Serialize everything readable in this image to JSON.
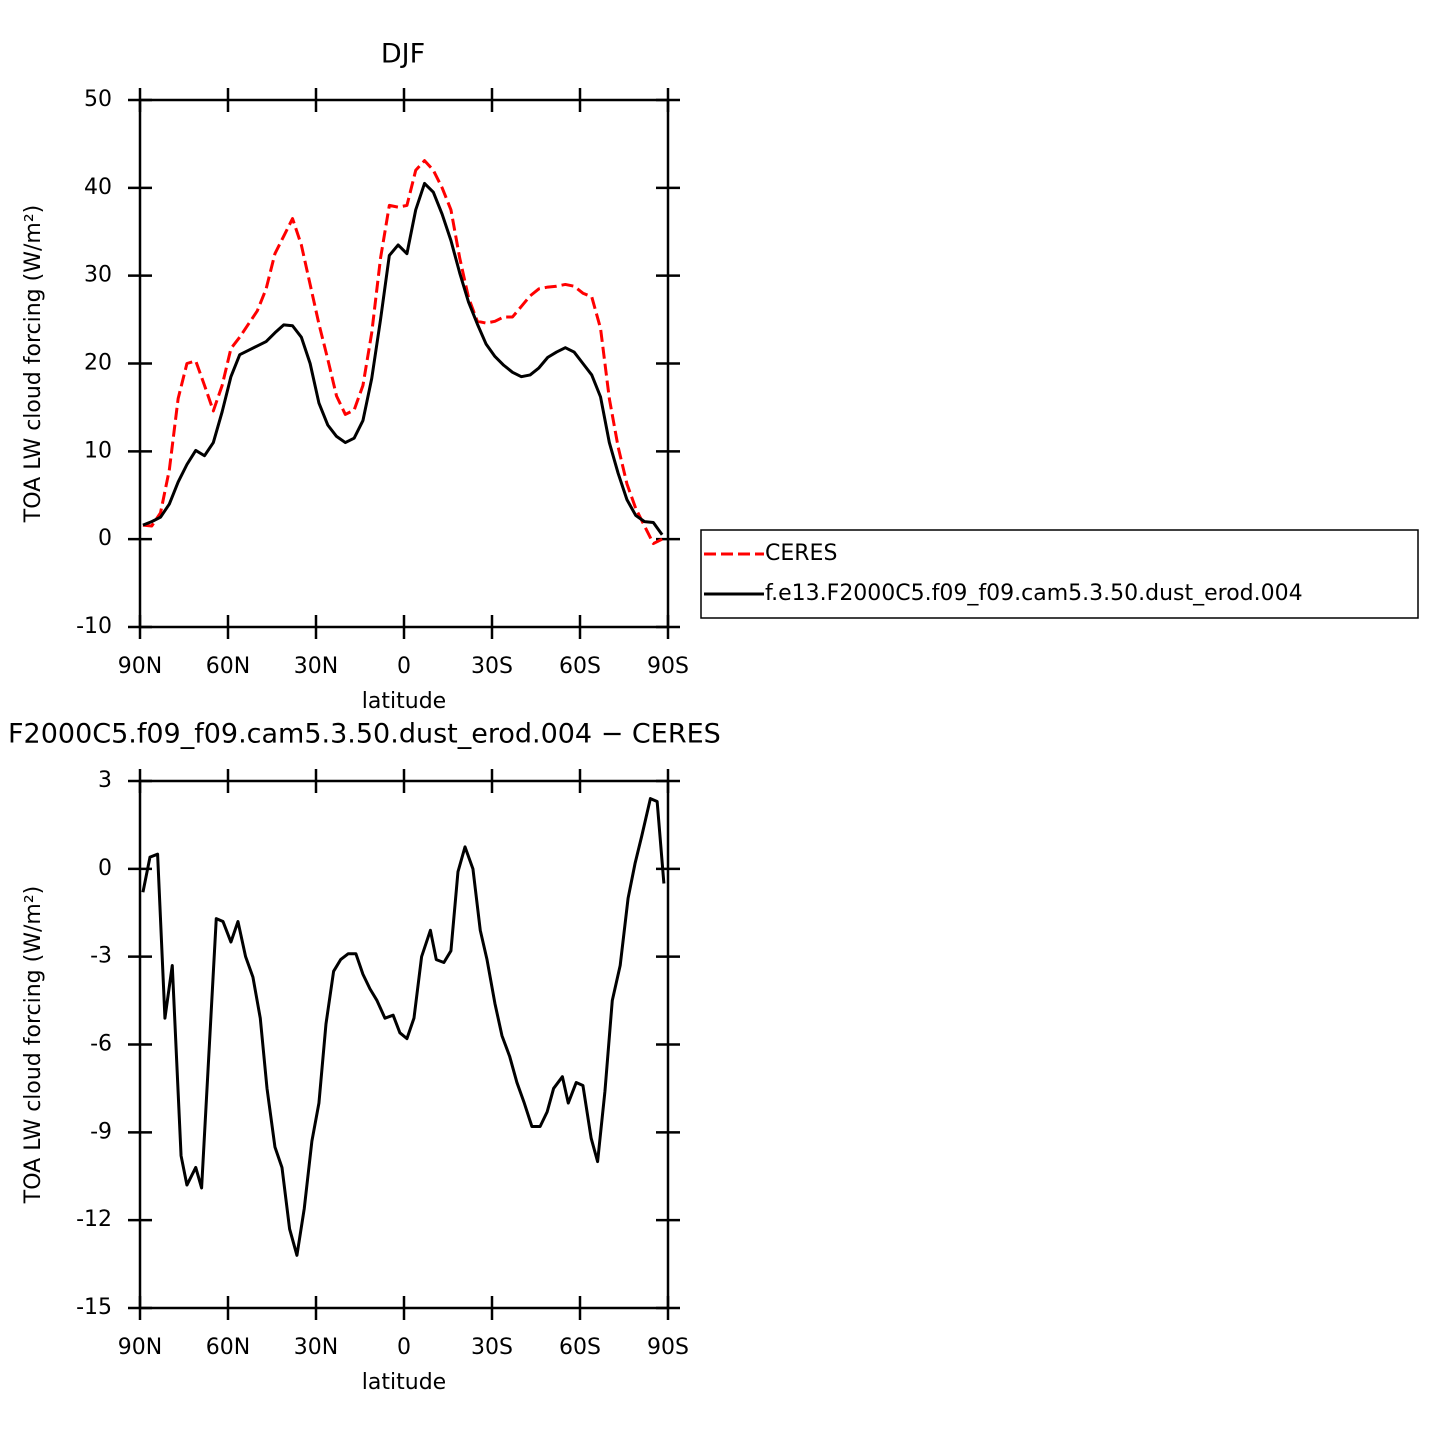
{
  "chart_data": [
    {
      "type": "line",
      "title": "DJF",
      "xlabel": "latitude",
      "ylabel": "TOA LW cloud forcing (W/m²)",
      "xlim": [
        90,
        -90
      ],
      "xticks": [
        {
          "value": 90,
          "label": "90N"
        },
        {
          "value": 60,
          "label": "60N"
        },
        {
          "value": 30,
          "label": "30N"
        },
        0,
        {
          "value": -30,
          "label": "30S"
        },
        {
          "value": -60,
          "label": "60S"
        },
        {
          "value": -90,
          "label": "90S"
        }
      ],
      "ylim": [
        -10,
        50
      ],
      "yticks": [
        -10,
        0,
        10,
        20,
        30,
        40,
        50
      ],
      "x": [
        89,
        86,
        83,
        80,
        77,
        74,
        71,
        68,
        65,
        62,
        59,
        56,
        53,
        50,
        47,
        44,
        41,
        38,
        35,
        32,
        29,
        26,
        23,
        20,
        17,
        14,
        11,
        8,
        5,
        2,
        -1,
        -4,
        -7,
        -10,
        -13,
        -16,
        -19,
        -22,
        -25,
        -28,
        -31,
        -34,
        -37,
        -40,
        -43,
        -46,
        -49,
        -52,
        -55,
        -58,
        -61,
        -64,
        -67,
        -70,
        -73,
        -76,
        -79,
        -82,
        -85,
        -88
      ],
      "series": [
        {
          "name": "CERES",
          "color": "#ff0000",
          "dashed": true,
          "values": [
            1.6,
            1.5,
            3,
            7.9,
            16,
            20,
            20.3,
            17.5,
            14.6,
            17.5,
            21.7,
            23,
            24.5,
            26,
            28.5,
            32.5,
            34.5,
            36.5,
            33.5,
            29,
            24.5,
            20.5,
            16.3,
            14.2,
            14.7,
            17.5,
            23.5,
            32,
            38,
            37.8,
            38,
            42,
            43.1,
            42,
            40,
            37.5,
            32,
            27.5,
            24.8,
            24.6,
            24.8,
            25.3,
            25.3,
            26.5,
            27.7,
            28.5,
            28.7,
            28.8,
            29,
            28.8,
            28,
            27.6,
            24,
            16,
            10.5,
            6.3,
            3.5,
            1.5,
            -0.5,
            0
          ]
        },
        {
          "name": "f.e13.F2000C5.f09_f09.cam5.3.50.dust_erod.004",
          "color": "#000000",
          "dashed": false,
          "values": [
            1.6,
            2,
            2.5,
            4,
            6.5,
            8.5,
            10.1,
            9.5,
            11,
            14.5,
            18.5,
            21,
            21.5,
            22,
            22.5,
            23.5,
            24.4,
            24.3,
            23,
            20,
            15.5,
            13,
            11.7,
            11,
            11.5,
            13.5,
            18.3,
            25,
            32.3,
            33.5,
            32.5,
            37.5,
            40.5,
            39.5,
            37,
            34,
            30.3,
            27,
            24.5,
            22.2,
            20.8,
            19.8,
            19,
            18.5,
            18.7,
            19.5,
            20.7,
            21.3,
            21.8,
            21.3,
            20,
            18.7,
            16.2,
            11,
            7.5,
            4.5,
            2.7,
            2,
            1.9,
            0.5
          ]
        }
      ]
    },
    {
      "type": "line",
      "title": "F2000C5.f09_f09.cam5.3.50.dust_erod.004 − CERES",
      "xlabel": "latitude",
      "ylabel": "TOA LW cloud forcing (W/m²)",
      "xlim": [
        90,
        -90
      ],
      "xticks": [
        {
          "value": 90,
          "label": "90N"
        },
        {
          "value": 60,
          "label": "60N"
        },
        {
          "value": 30,
          "label": "30N"
        },
        0,
        {
          "value": -30,
          "label": "30S"
        },
        {
          "value": -60,
          "label": "60S"
        },
        {
          "value": -90,
          "label": "90S"
        }
      ],
      "ylim": [
        -15,
        3
      ],
      "yticks": [
        -15,
        -12,
        -9,
        -6,
        -3,
        0,
        3
      ],
      "x": [
        89,
        86.6,
        84,
        81.5,
        79,
        76,
        74,
        71,
        69,
        64,
        61.7,
        59,
        56.6,
        54,
        51.5,
        49,
        46.7,
        44,
        41.6,
        39,
        36.5,
        34,
        31.4,
        29,
        26.6,
        24,
        21.6,
        19,
        16.4,
        14,
        11.6,
        9.2,
        6.5,
        3.7,
        1.4,
        -1,
        -3.4,
        -6,
        -9,
        -11,
        -13.6,
        -16,
        -18.4,
        -20.8,
        -23.5,
        -26,
        -28.3,
        -31,
        -33.4,
        -36,
        -38.5,
        -41,
        -43.6,
        -46.4,
        -48.8,
        -51,
        -54,
        -56,
        -58.7,
        -61,
        -63.8,
        -66,
        -68.5,
        -71,
        -73.7,
        -76.4,
        -78.8,
        -81,
        -84,
        -86.3,
        -88.6
      ],
      "series": [
        {
          "color": "#000000",
          "dashed": false,
          "values": [
            -0.8,
            0.4,
            0.5,
            -5.1,
            -3.3,
            -9.8,
            -10.8,
            -10.2,
            -10.9,
            -1.7,
            -1.8,
            -2.5,
            -1.8,
            -3,
            -3.7,
            -5.1,
            -7.5,
            -9.5,
            -10.2,
            -12.3,
            -13.2,
            -11.6,
            -9.3,
            -8,
            -5.3,
            -3.5,
            -3.1,
            -2.9,
            -2.9,
            -3.6,
            -4.1,
            -4.5,
            -5.1,
            -5,
            -5.6,
            -5.8,
            -5.1,
            -3,
            -2.1,
            -3.1,
            -3.2,
            -2.8,
            -0.1,
            0.75,
            0,
            -2.1,
            -3.1,
            -4.6,
            -5.7,
            -6.4,
            -7.3,
            -8,
            -8.8,
            -8.8,
            -8.3,
            -7.5,
            -7.1,
            -8,
            -7.3,
            -7.4,
            -9.2,
            -10,
            -7.6,
            -4.5,
            -3.3,
            -1,
            0.2,
            1.1,
            2.4,
            2.3,
            -0.5
          ]
        }
      ]
    }
  ]
}
